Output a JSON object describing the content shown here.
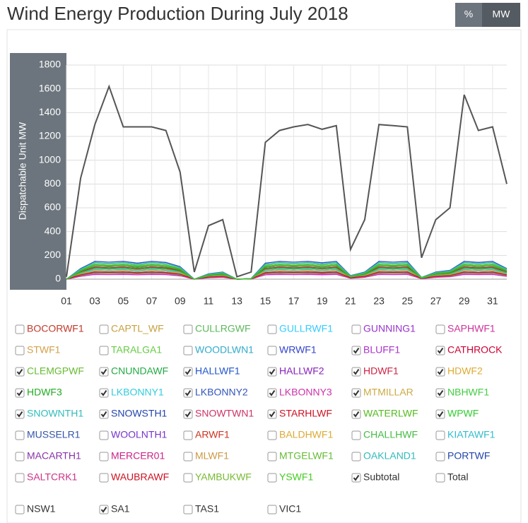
{
  "chart_data": {
    "type": "line",
    "title": "Wind Energy Production During July 2018",
    "ylabel": "Dispatchable Unit MW",
    "unit_buttons": [
      "%",
      "MW"
    ],
    "active_button": 1,
    "x": [
      1,
      2,
      3,
      4,
      5,
      6,
      7,
      8,
      9,
      10,
      11,
      12,
      13,
      14,
      15,
      16,
      17,
      18,
      19,
      20,
      21,
      22,
      23,
      24,
      25,
      26,
      27,
      28,
      29,
      30,
      31,
      32
    ],
    "xlim": [
      1,
      32
    ],
    "xticks": [
      {
        "value": 1,
        "label": "01"
      },
      {
        "value": 3,
        "label": "03"
      },
      {
        "value": 5,
        "label": "05"
      },
      {
        "value": 7,
        "label": "07"
      },
      {
        "value": 9,
        "label": "09"
      },
      11,
      13,
      15,
      17,
      19,
      21,
      23,
      25,
      27,
      29,
      31
    ],
    "ylim": [
      0,
      1800
    ],
    "yticks": [
      0,
      200,
      400,
      600,
      800,
      1000,
      1200,
      1400,
      1600,
      1800
    ],
    "grid": true,
    "series": [
      {
        "name": "BOCORWF1",
        "color": "#c0392b",
        "checked": false
      },
      {
        "name": "CAPTL_WF",
        "color": "#c8a040",
        "checked": false
      },
      {
        "name": "CULLRGWF",
        "color": "#5cb85c",
        "checked": false
      },
      {
        "name": "GULLRWF1",
        "color": "#33ccff",
        "checked": false
      },
      {
        "name": "GUNNING1",
        "color": "#9933cc",
        "checked": false
      },
      {
        "name": "SAPHWF1",
        "color": "#cc3399",
        "checked": false
      },
      {
        "name": "STWF1",
        "color": "#d4a04a",
        "checked": false
      },
      {
        "name": "TARALGA1",
        "color": "#66cc44",
        "checked": false
      },
      {
        "name": "WOODLWN1",
        "color": "#33aacc",
        "checked": false
      },
      {
        "name": "WRWF1",
        "color": "#3344cc",
        "checked": false
      },
      {
        "name": "BLUFF1",
        "color": "#aa33cc",
        "checked": true,
        "values": [
          0,
          30,
          50,
          48,
          50,
          45,
          50,
          47,
          35,
          0,
          15,
          20,
          0,
          2,
          45,
          50,
          48,
          50,
          46,
          50,
          10,
          20,
          50,
          48,
          50,
          5,
          20,
          25,
          50,
          47,
          50,
          30
        ]
      },
      {
        "name": "CATHROCK",
        "color": "#cc0033",
        "checked": true,
        "values": [
          0,
          36,
          60,
          57,
          60,
          54,
          60,
          56,
          42,
          0,
          18,
          24,
          0,
          2,
          54,
          60,
          57,
          60,
          55,
          60,
          12,
          24,
          60,
          57,
          60,
          6,
          24,
          30,
          60,
          56,
          60,
          36
        ]
      },
      {
        "name": "CLEMGPWF",
        "color": "#66bb33",
        "checked": true,
        "values": [
          0,
          33,
          55,
          52,
          55,
          50,
          55,
          52,
          38,
          0,
          16,
          22,
          0,
          2,
          50,
          55,
          52,
          55,
          51,
          55,
          11,
          22,
          55,
          52,
          55,
          5,
          22,
          27,
          55,
          52,
          55,
          33
        ]
      },
      {
        "name": "CNUNDAWF",
        "color": "#22aa44",
        "checked": true,
        "values": [
          0,
          60,
          100,
          95,
          100,
          90,
          100,
          94,
          70,
          0,
          30,
          40,
          0,
          4,
          90,
          100,
          95,
          100,
          92,
          100,
          20,
          40,
          100,
          95,
          100,
          10,
          40,
          50,
          100,
          94,
          100,
          60
        ]
      },
      {
        "name": "HALLWF1",
        "color": "#2255cc",
        "checked": true,
        "values": [
          0,
          54,
          90,
          86,
          90,
          81,
          90,
          85,
          63,
          0,
          27,
          36,
          0,
          3,
          81,
          90,
          86,
          90,
          83,
          90,
          18,
          36,
          90,
          86,
          90,
          9,
          36,
          45,
          90,
          85,
          90,
          54
        ]
      },
      {
        "name": "HALLWF2",
        "color": "#8822bb",
        "checked": true,
        "values": [
          0,
          42,
          70,
          66,
          70,
          63,
          70,
          66,
          49,
          0,
          21,
          28,
          0,
          3,
          63,
          70,
          66,
          70,
          64,
          70,
          14,
          28,
          70,
          66,
          70,
          7,
          28,
          35,
          70,
          66,
          70,
          42
        ]
      },
      {
        "name": "HDWF1",
        "color": "#cc2244",
        "checked": true,
        "values": [
          0,
          60,
          100,
          95,
          100,
          90,
          100,
          94,
          70,
          0,
          30,
          40,
          0,
          4,
          90,
          100,
          95,
          100,
          92,
          100,
          20,
          40,
          100,
          95,
          100,
          10,
          40,
          50,
          100,
          94,
          100,
          60
        ]
      },
      {
        "name": "HDWF2",
        "color": "#ddaa33",
        "checked": true,
        "values": [
          0,
          54,
          90,
          86,
          90,
          81,
          90,
          85,
          63,
          0,
          27,
          36,
          0,
          3,
          81,
          90,
          86,
          90,
          83,
          90,
          18,
          36,
          90,
          86,
          90,
          9,
          36,
          45,
          90,
          85,
          90,
          54
        ]
      },
      {
        "name": "HDWF3",
        "color": "#22aa22",
        "checked": true,
        "values": [
          0,
          66,
          110,
          105,
          110,
          99,
          110,
          103,
          77,
          0,
          33,
          44,
          0,
          4,
          99,
          110,
          105,
          110,
          101,
          110,
          22,
          44,
          110,
          105,
          110,
          11,
          44,
          55,
          110,
          103,
          110,
          66
        ]
      },
      {
        "name": "LKBONNY1",
        "color": "#33ccdd",
        "checked": true,
        "values": [
          0,
          48,
          80,
          76,
          80,
          72,
          80,
          75,
          56,
          0,
          24,
          32,
          0,
          3,
          72,
          80,
          76,
          80,
          74,
          80,
          16,
          32,
          80,
          76,
          80,
          8,
          32,
          40,
          80,
          75,
          80,
          48
        ]
      },
      {
        "name": "LKBONNY2",
        "color": "#3355bb",
        "checked": true,
        "values": [
          0,
          90,
          150,
          143,
          150,
          135,
          150,
          141,
          105,
          0,
          45,
          60,
          0,
          6,
          135,
          150,
          143,
          150,
          138,
          150,
          30,
          60,
          150,
          143,
          150,
          15,
          60,
          75,
          150,
          141,
          150,
          90
        ]
      },
      {
        "name": "LKBONNY3",
        "color": "#cc33aa",
        "checked": true,
        "values": [
          0,
          24,
          40,
          38,
          40,
          36,
          40,
          38,
          28,
          0,
          12,
          16,
          0,
          2,
          36,
          40,
          38,
          40,
          37,
          40,
          8,
          16,
          40,
          38,
          40,
          4,
          16,
          20,
          40,
          38,
          40,
          24
        ]
      },
      {
        "name": "MTMILLAR",
        "color": "#ccaa44",
        "checked": true,
        "values": [
          0,
          42,
          70,
          66,
          70,
          63,
          70,
          66,
          49,
          0,
          21,
          28,
          0,
          3,
          63,
          70,
          66,
          70,
          64,
          70,
          14,
          28,
          70,
          66,
          70,
          7,
          28,
          35,
          70,
          66,
          70,
          42
        ]
      },
      {
        "name": "NBHWF1",
        "color": "#44cc44",
        "checked": true,
        "values": [
          0,
          78,
          130,
          124,
          130,
          117,
          130,
          122,
          91,
          0,
          39,
          52,
          0,
          5,
          117,
          130,
          124,
          130,
          120,
          130,
          26,
          52,
          130,
          124,
          130,
          13,
          52,
          65,
          130,
          122,
          130,
          78
        ]
      },
      {
        "name": "SNOWNTH1",
        "color": "#33bbbb",
        "checked": true,
        "values": [
          0,
          84,
          140,
          133,
          140,
          126,
          140,
          132,
          98,
          0,
          42,
          56,
          0,
          6,
          126,
          140,
          133,
          140,
          129,
          140,
          28,
          56,
          140,
          133,
          140,
          14,
          56,
          70,
          140,
          132,
          140,
          84
        ]
      },
      {
        "name": "SNOWSTH1",
        "color": "#2244aa",
        "checked": true,
        "values": [
          0,
          72,
          120,
          114,
          120,
          108,
          120,
          113,
          84,
          0,
          36,
          48,
          0,
          5,
          108,
          120,
          114,
          120,
          110,
          120,
          24,
          48,
          120,
          114,
          120,
          12,
          48,
          60,
          120,
          113,
          120,
          72
        ]
      },
      {
        "name": "SNOWTWN1",
        "color": "#cc3366",
        "checked": true,
        "values": [
          0,
          54,
          90,
          86,
          90,
          81,
          90,
          85,
          63,
          0,
          27,
          36,
          0,
          3,
          81,
          90,
          86,
          90,
          83,
          90,
          18,
          36,
          90,
          86,
          90,
          9,
          36,
          45,
          90,
          85,
          90,
          54
        ]
      },
      {
        "name": "STARHLWF",
        "color": "#cc1122",
        "checked": true,
        "values": [
          0,
          36,
          60,
          57,
          60,
          54,
          60,
          56,
          42,
          0,
          18,
          24,
          0,
          2,
          54,
          60,
          57,
          60,
          55,
          60,
          12,
          24,
          60,
          57,
          60,
          6,
          24,
          30,
          60,
          56,
          60,
          36
        ]
      },
      {
        "name": "WATERLWF",
        "color": "#55bb22",
        "checked": true,
        "values": [
          0,
          72,
          120,
          114,
          120,
          108,
          120,
          113,
          84,
          0,
          36,
          48,
          0,
          5,
          108,
          120,
          114,
          120,
          110,
          120,
          24,
          48,
          120,
          114,
          120,
          12,
          48,
          60,
          120,
          113,
          120,
          72
        ]
      },
      {
        "name": "WPWF",
        "color": "#33cc33",
        "checked": true,
        "values": [
          0,
          54,
          90,
          86,
          90,
          81,
          90,
          85,
          63,
          0,
          27,
          36,
          0,
          3,
          81,
          90,
          86,
          90,
          83,
          90,
          18,
          36,
          90,
          86,
          90,
          9,
          36,
          45,
          90,
          85,
          90,
          54
        ]
      },
      {
        "name": "MUSSELR1",
        "color": "#3355aa",
        "checked": false
      },
      {
        "name": "WOOLNTH1",
        "color": "#7733cc",
        "checked": false
      },
      {
        "name": "ARWF1",
        "color": "#cc3322",
        "checked": false
      },
      {
        "name": "BALDHWF1",
        "color": "#ddaa33",
        "checked": false
      },
      {
        "name": "CHALLHWF",
        "color": "#44bb44",
        "checked": false
      },
      {
        "name": "KIATAWF1",
        "color": "#33bbcc",
        "checked": false
      },
      {
        "name": "MACARTH1",
        "color": "#8833aa",
        "checked": false
      },
      {
        "name": "MERCER01",
        "color": "#cc2288",
        "checked": false
      },
      {
        "name": "MLWF1",
        "color": "#cc9944",
        "checked": false
      },
      {
        "name": "MTGELWF1",
        "color": "#66bb33",
        "checked": false
      },
      {
        "name": "OAKLAND1",
        "color": "#33bbbb",
        "checked": false
      },
      {
        "name": "PORTWF",
        "color": "#2244aa",
        "checked": false
      },
      {
        "name": "SALTCRK1",
        "color": "#cc3388",
        "checked": false
      },
      {
        "name": "WAUBRAWF",
        "color": "#cc1122",
        "checked": false
      },
      {
        "name": "YAMBUKWF",
        "color": "#77bb33",
        "checked": false
      },
      {
        "name": "YSWF1",
        "color": "#44cc22",
        "checked": false
      },
      {
        "name": "Subtotal",
        "color": "#555555",
        "checked": true,
        "values": [
          20,
          850,
          1300,
          1620,
          1280,
          1280,
          1280,
          1250,
          900,
          60,
          450,
          500,
          20,
          60,
          1150,
          1250,
          1280,
          1300,
          1260,
          1290,
          250,
          500,
          1300,
          1290,
          1280,
          180,
          500,
          600,
          1550,
          1250,
          1280,
          800
        ]
      },
      {
        "name": "Total",
        "color": "#333333",
        "checked": false
      }
    ],
    "regions": [
      {
        "name": "NSW1",
        "checked": false
      },
      {
        "name": "SA1",
        "checked": true
      },
      {
        "name": "TAS1",
        "checked": false
      },
      {
        "name": "VIC1",
        "checked": false
      }
    ]
  }
}
